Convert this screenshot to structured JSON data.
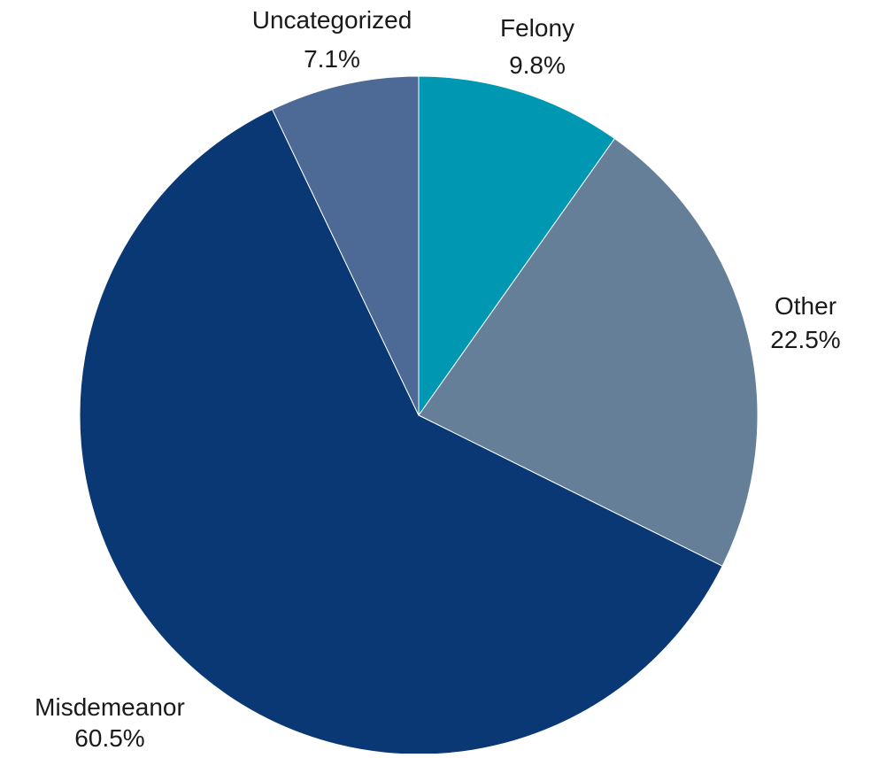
{
  "chart_data": {
    "type": "pie",
    "title": "",
    "slices": [
      {
        "label": "Felony",
        "value": 9.8,
        "value_label": "9.8%",
        "color": "#0097B2"
      },
      {
        "label": "Other",
        "value": 22.5,
        "value_label": "22.5%",
        "color": "#667F99"
      },
      {
        "label": "Misdemeanor",
        "value": 60.5,
        "value_label": "60.5%",
        "color": "#093874"
      },
      {
        "label": "Uncategorized",
        "value": 7.1,
        "value_label": "7.1%",
        "color": "#4D6A96"
      }
    ],
    "start_angle": "12 o'clock",
    "direction": "clockwise",
    "legend": "none",
    "labels": "outside"
  }
}
